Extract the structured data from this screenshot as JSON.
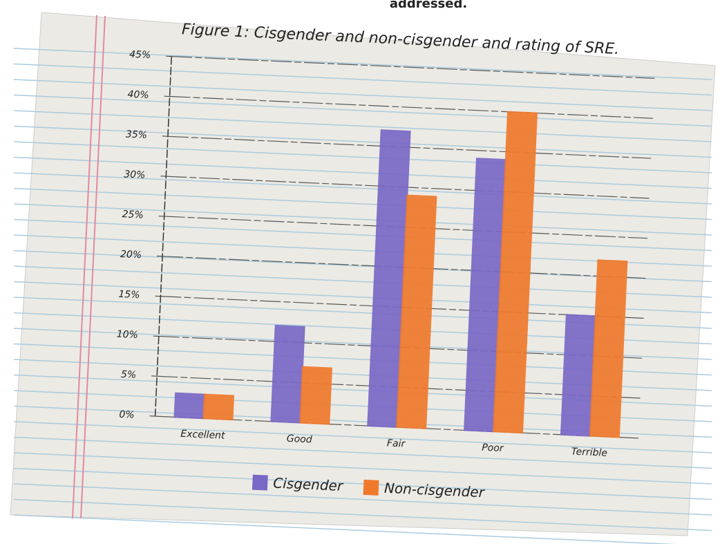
{
  "page_text": {
    "top_fragment": "addressed."
  },
  "chart_data": {
    "type": "bar",
    "title": "Figure 1: Cisgender and non-cisgender and rating of SRE.",
    "categories": [
      "Excellent",
      "Good",
      "Fair",
      "Poor",
      "Terrible"
    ],
    "series": [
      {
        "name": "Cisgender",
        "color": "#7a68c6",
        "values": [
          3,
          12,
          37,
          34,
          15
        ]
      },
      {
        "name": "Non-cisgender",
        "color": "#f07a2c",
        "values": [
          3,
          7,
          29,
          40,
          22
        ]
      }
    ],
    "ylim": [
      0,
      45
    ],
    "yticks": [
      {
        "value": 0,
        "label": "0%"
      },
      {
        "value": 5,
        "label": "5%"
      },
      {
        "value": 10,
        "label": "10%"
      },
      {
        "value": 15,
        "label": "15%"
      },
      {
        "value": 20,
        "label": "20%"
      },
      {
        "value": 25,
        "label": "25%"
      },
      {
        "value": 30,
        "label": "30%"
      },
      {
        "value": 35,
        "label": "35%"
      },
      {
        "value": 40,
        "label": "40%"
      },
      {
        "value": 45,
        "label": "45%"
      }
    ],
    "grid": true,
    "legend": "bottom"
  }
}
